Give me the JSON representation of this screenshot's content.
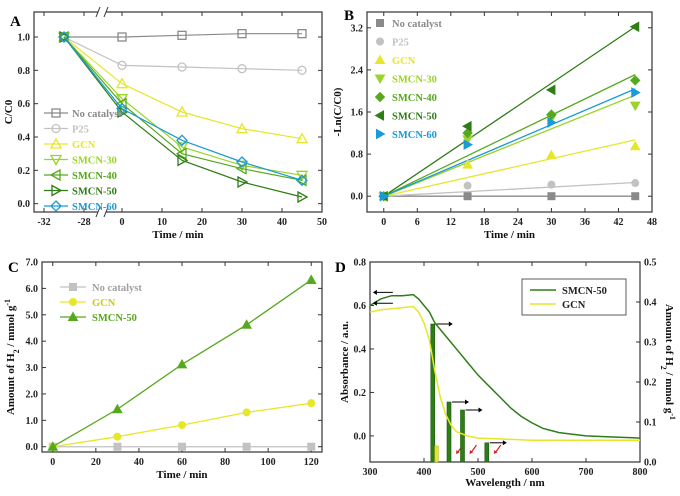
{
  "colors": {
    "gray": "#8a8a8a",
    "lightgray": "#c2c2c2",
    "yellow": "#e6e62a",
    "lightgreen": "#9ad32a",
    "green": "#56a81f",
    "darkgreen": "#2f7d17",
    "blue": "#1a9ad6"
  },
  "chart_data": [
    {
      "panel": "A",
      "type": "line",
      "xlabel": "Time / min",
      "ylabel": "C/C0",
      "x_ticks": [
        "-32",
        "-28",
        "0",
        "10",
        "20",
        "30",
        "40",
        "50"
      ],
      "y_ticks": [
        "0.0",
        "0.2",
        "0.4",
        "0.6",
        "0.8",
        "1.0"
      ],
      "x": [
        -30,
        0,
        15,
        30,
        45
      ],
      "ylim": [
        -0.05,
        1.15
      ],
      "axis_break": true,
      "legend_position": "center-left",
      "series": [
        {
          "name": "No catalyst",
          "color": "gray",
          "marker": "square",
          "values": [
            1.0,
            1.0,
            1.01,
            1.02,
            1.02
          ]
        },
        {
          "name": "P25",
          "color": "lightgray",
          "marker": "circle",
          "values": [
            1.0,
            0.83,
            0.82,
            0.81,
            0.8
          ]
        },
        {
          "name": "GCN",
          "color": "yellow",
          "marker": "triangle-up",
          "values": [
            1.0,
            0.72,
            0.55,
            0.45,
            0.39
          ]
        },
        {
          "name": "SMCN-30",
          "color": "lightgreen",
          "marker": "triangle-down",
          "values": [
            1.0,
            0.63,
            0.34,
            0.23,
            0.17
          ]
        },
        {
          "name": "SMCN-40",
          "color": "green",
          "marker": "triangle-left",
          "values": [
            1.0,
            0.6,
            0.3,
            0.21,
            0.14
          ]
        },
        {
          "name": "SMCN-50",
          "color": "darkgreen",
          "marker": "triangle-right",
          "values": [
            1.0,
            0.55,
            0.26,
            0.13,
            0.04
          ]
        },
        {
          "name": "SMCN-60",
          "color": "blue",
          "marker": "diamond",
          "values": [
            1.0,
            0.57,
            0.38,
            0.25,
            0.14
          ]
        }
      ]
    },
    {
      "panel": "B",
      "type": "scatter",
      "xlabel": "Time / min",
      "ylabel": "-Ln(C/C0)",
      "x_ticks": [
        "0",
        "6",
        "12",
        "18",
        "24",
        "30",
        "36",
        "42",
        "48"
      ],
      "y_ticks": [
        "0.0",
        "0.8",
        "1.6",
        "2.4",
        "3.2"
      ],
      "xlim": [
        -3,
        48
      ],
      "ylim": [
        -0.3,
        3.5
      ],
      "x": [
        0,
        15,
        30,
        45
      ],
      "legend_position": "top-left",
      "series": [
        {
          "name": "No catalyst",
          "color": "gray",
          "marker": "square",
          "values": [
            0,
            0,
            0,
            0
          ],
          "fit_end": 0.0
        },
        {
          "name": "P25",
          "color": "lightgray",
          "marker": "circle",
          "values": [
            0,
            0.2,
            0.22,
            0.25
          ],
          "fit_end": 0.26
        },
        {
          "name": "GCN",
          "color": "yellow",
          "marker": "triangle-up",
          "values": [
            0,
            0.6,
            0.78,
            0.95
          ],
          "fit_end": 1.07
        },
        {
          "name": "SMCN-30",
          "color": "lightgreen",
          "marker": "triangle-down",
          "values": [
            0,
            1.08,
            1.48,
            1.72
          ],
          "fit_end": 1.92
        },
        {
          "name": "SMCN-40",
          "color": "green",
          "marker": "diamond",
          "values": [
            0,
            1.2,
            1.55,
            2.2
          ],
          "fit_end": 2.31
        },
        {
          "name": "SMCN-50",
          "color": "darkgreen",
          "marker": "triangle-left",
          "values": [
            0,
            1.33,
            2.02,
            3.22
          ],
          "fit_end": 3.22
        },
        {
          "name": "SMCN-60",
          "color": "blue",
          "marker": "triangle-right",
          "values": [
            0,
            0.98,
            1.4,
            1.97
          ],
          "fit_end": 2.04
        }
      ]
    },
    {
      "panel": "C",
      "type": "line",
      "xlabel": "Time / min",
      "ylabel": "Amount of H2 / mmol g-1",
      "x_ticks": [
        "0",
        "20",
        "40",
        "60",
        "80",
        "100",
        "120"
      ],
      "y_ticks": [
        "0.0",
        "1.0",
        "2.0",
        "3.0",
        "4.0",
        "5.0",
        "6.0",
        "7.0"
      ],
      "xlim": [
        -5,
        125
      ],
      "ylim": [
        -0.2,
        7.0
      ],
      "x": [
        0,
        30,
        60,
        90,
        120
      ],
      "legend_position": "top-left",
      "series": [
        {
          "name": "No catalyst",
          "color": "lightgray",
          "marker": "square",
          "values": [
            0,
            0,
            0,
            0,
            0
          ]
        },
        {
          "name": "GCN",
          "color": "yellow",
          "marker": "circle",
          "values": [
            0,
            0.38,
            0.82,
            1.3,
            1.65
          ]
        },
        {
          "name": "SMCN-50",
          "color": "green",
          "marker": "triangle-up",
          "values": [
            0,
            1.42,
            3.12,
            4.62,
            6.32
          ]
        }
      ]
    },
    {
      "panel": "D",
      "type": "line",
      "xlabel": "Wavelength / nm",
      "ylabel": "Absorbance / a.u.",
      "ylabel_right": "Amount of H2 / mmol g-1",
      "x_ticks": [
        "300",
        "400",
        "500",
        "600",
        "700",
        "800"
      ],
      "y_ticks": [
        "0.0",
        "0.2",
        "0.4",
        "0.6",
        "0.8"
      ],
      "y_ticks_right": [
        "0.0",
        "0.1",
        "0.2",
        "0.3",
        "0.4",
        "0.5"
      ],
      "xlim": [
        300,
        800
      ],
      "ylim": [
        -0.12,
        0.8
      ],
      "ylim_right": [
        0,
        0.5
      ],
      "legend_position": "top-right",
      "series": [
        {
          "name": "SMCN-50",
          "color": "darkgreen",
          "x": [
            300,
            320,
            340,
            360,
            380,
            390,
            400,
            410,
            420,
            440,
            460,
            480,
            500,
            520,
            540,
            560,
            580,
            600,
            620,
            650,
            700,
            750,
            800
          ],
          "values": [
            0.6,
            0.63,
            0.645,
            0.645,
            0.65,
            0.63,
            0.6,
            0.57,
            0.52,
            0.46,
            0.4,
            0.34,
            0.28,
            0.23,
            0.18,
            0.13,
            0.09,
            0.06,
            0.035,
            0.015,
            0.0,
            -0.005,
            -0.01
          ]
        },
        {
          "name": "GCN",
          "color": "yellow",
          "x": [
            300,
            320,
            340,
            360,
            380,
            390,
            400,
            410,
            420,
            430,
            440,
            450,
            460,
            480,
            500,
            550,
            600,
            700,
            800
          ],
          "values": [
            0.57,
            0.58,
            0.585,
            0.59,
            0.595,
            0.57,
            0.52,
            0.44,
            0.3,
            0.18,
            0.1,
            0.05,
            0.02,
            0.0,
            -0.01,
            -0.015,
            -0.02,
            -0.02,
            -0.02
          ]
        }
      ],
      "bars": {
        "wavelengths": [
          420,
          450,
          475,
          520
        ],
        "SMCN-50": [
          0.345,
          0.15,
          0.13,
          0.048
        ],
        "GCN": [
          0.04,
          0.0,
          0.0,
          0.0
        ]
      }
    }
  ]
}
